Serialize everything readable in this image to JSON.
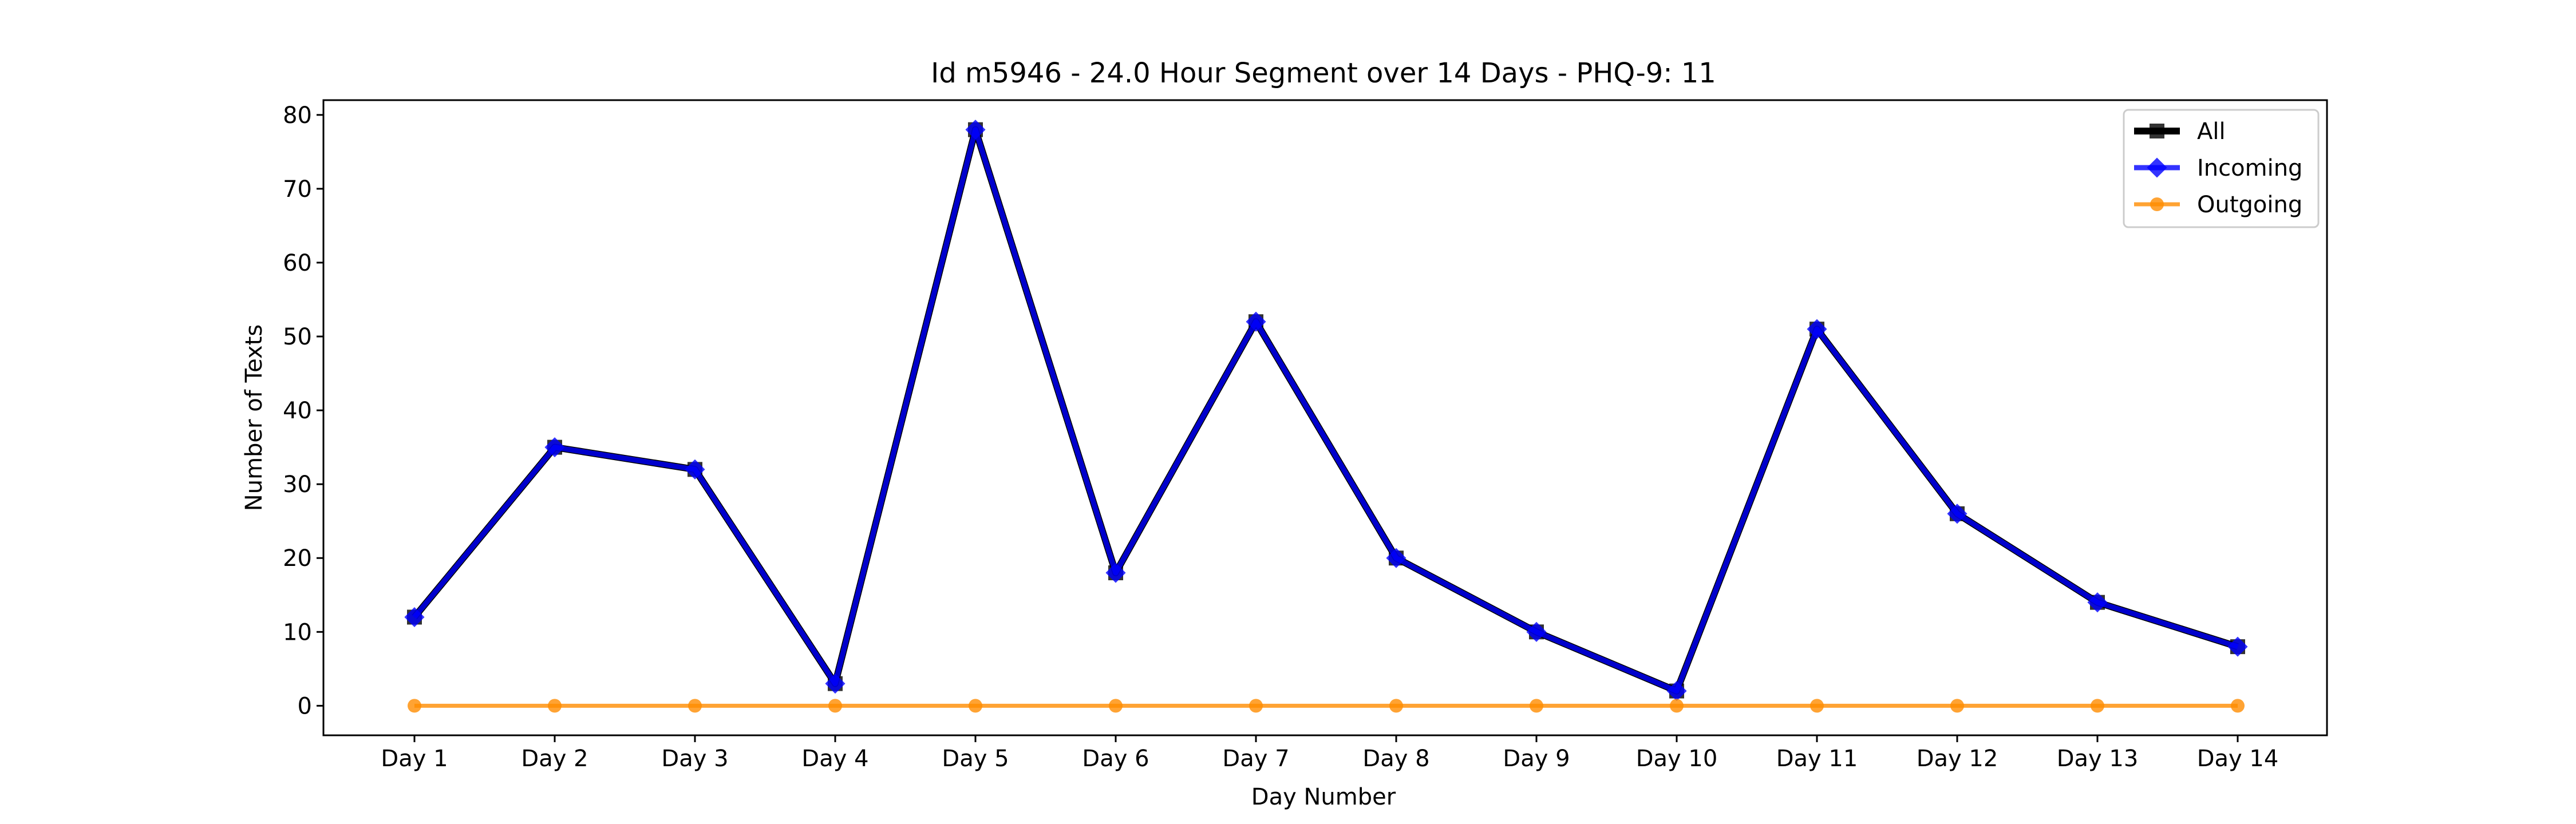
{
  "chart_data": {
    "type": "line",
    "title": "Id m5946 - 24.0 Hour Segment over 14 Days - PHQ-9: 11",
    "xlabel": "Day Number",
    "ylabel": "Number of Texts",
    "categories": [
      "Day 1",
      "Day 2",
      "Day 3",
      "Day 4",
      "Day 5",
      "Day 6",
      "Day 7",
      "Day 8",
      "Day 9",
      "Day 10",
      "Day 11",
      "Day 12",
      "Day 13",
      "Day 14"
    ],
    "yticks": [
      0,
      10,
      20,
      30,
      40,
      50,
      60,
      70,
      80
    ],
    "ylim": [
      -4,
      82
    ],
    "legend_position": "top-right",
    "series": [
      {
        "name": "All",
        "values": [
          12,
          35,
          32,
          3,
          78,
          18,
          52,
          20,
          10,
          2,
          51,
          26,
          14,
          8
        ],
        "color": "#000000",
        "marker": "square"
      },
      {
        "name": "Incoming",
        "values": [
          12,
          35,
          32,
          3,
          78,
          18,
          52,
          20,
          10,
          2,
          51,
          26,
          14,
          8
        ],
        "color": "#0000ff",
        "marker": "diamond"
      },
      {
        "name": "Outgoing",
        "values": [
          0,
          0,
          0,
          0,
          0,
          0,
          0,
          0,
          0,
          0,
          0,
          0,
          0,
          0
        ],
        "color": "#ff8c00",
        "marker": "circle"
      }
    ]
  }
}
